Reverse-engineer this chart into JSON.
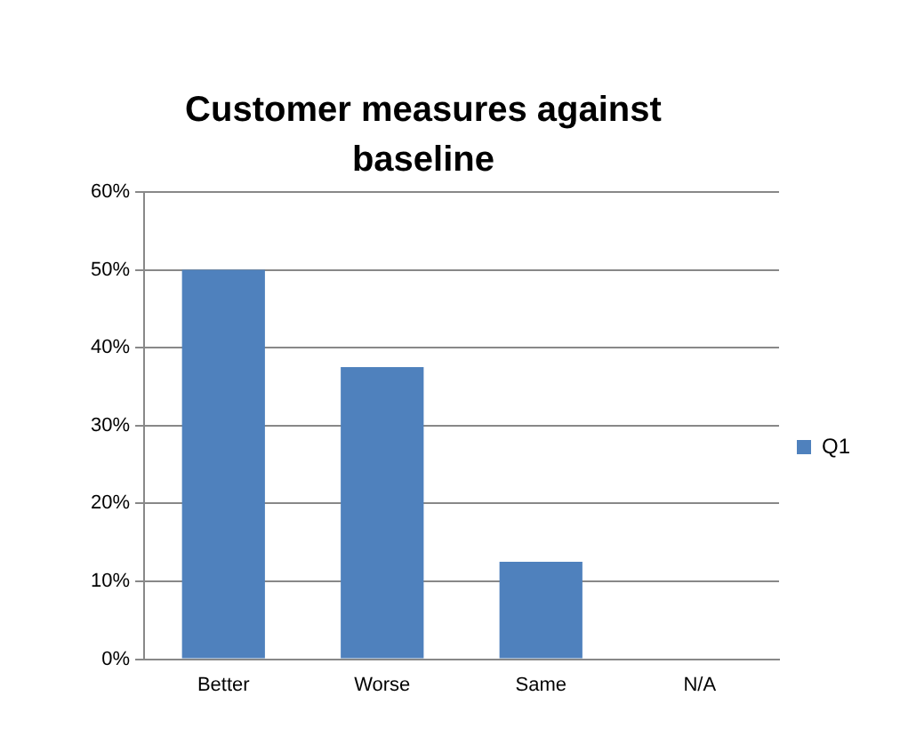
{
  "chart_data": {
    "type": "bar",
    "title": "Customer measures against baseline",
    "categories": [
      "Better",
      "Worse",
      "Same",
      "N/A"
    ],
    "series": [
      {
        "name": "Q1",
        "color": "#4f81bd",
        "values": [
          50,
          37.5,
          12.5,
          0
        ]
      }
    ],
    "ylim": [
      0,
      60
    ],
    "yticks": [
      {
        "value": 0,
        "label": "0%"
      },
      {
        "value": 10,
        "label": "10%"
      },
      {
        "value": 20,
        "label": "20%"
      },
      {
        "value": 30,
        "label": "30%"
      },
      {
        "value": 40,
        "label": "40%"
      },
      {
        "value": 50,
        "label": "50%"
      },
      {
        "value": 60,
        "label": "60%"
      }
    ],
    "grid": "y",
    "legend": "right"
  }
}
